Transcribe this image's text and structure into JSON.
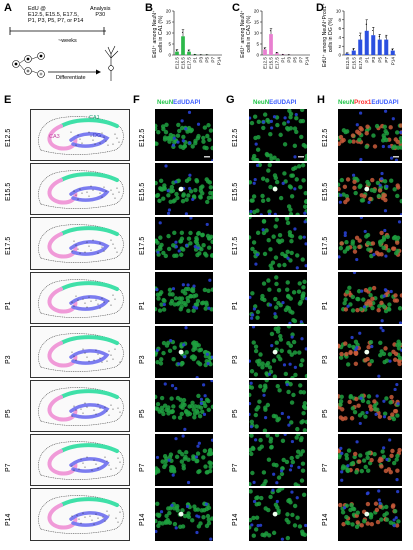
{
  "panels": {
    "A": {
      "label": "A",
      "edu_line1": "EdU @",
      "edu_line2": "E12.5, E15.5, E17.5,",
      "edu_line3": "P1, P3, P5, P7, or P14",
      "analysis_line1": "Analysis",
      "analysis_line2": "P30",
      "weeks": "~weeks",
      "differentiate": "Differentiate"
    },
    "B": {
      "label": "B",
      "ylabel_line1": "EdU⁺ among NeuN⁺",
      "ylabel_line2": "cells in CA1 (%)"
    },
    "C": {
      "label": "C",
      "ylabel_line1": "EdU⁺ among NeuN⁺",
      "ylabel_line2": "cells in CA3 (%)"
    },
    "D": {
      "label": "D",
      "ylabel_line1": "EdU⁺ among NeuN⁺Prox1⁺",
      "ylabel_line2": "cells in DG (%)"
    },
    "E": {
      "label": "E",
      "ca1": "CA1",
      "ca3": "CA3",
      "dg": "DG"
    },
    "F": {
      "label": "F",
      "h1": "NeuN",
      "h2": "EdU",
      "h3": "DAPI"
    },
    "G": {
      "label": "G",
      "h1": "NeuN",
      "h2": "EdU",
      "h3": "DAPI"
    },
    "H": {
      "label": "H",
      "h1": "NeuN",
      "h2": "Prox1",
      "h3": "EdU",
      "h4": "DAPI"
    }
  },
  "timepoints": [
    "E12.5",
    "E15.5",
    "E17.5",
    "P1",
    "P3",
    "P5",
    "P7",
    "P14"
  ],
  "colors": {
    "ca1": "#3fe0a8",
    "ca3": "#f09ad8",
    "dg": "#7b7cf0",
    "bar_green": "#2db84a",
    "bar_pink": "#e87fd0",
    "bar_blue": "#2a4fe0",
    "neun": "#22c54a",
    "dapi": "#3a5bff",
    "prox1": "#ff2a2a"
  },
  "chart_data": [
    {
      "type": "bar",
      "panel": "B",
      "categories": [
        "E12.5",
        "E15.5",
        "E17.5",
        "P1",
        "P3",
        "P5",
        "P7",
        "P14"
      ],
      "values": [
        1.5,
        8.5,
        1.5,
        0.2,
        0.1,
        0.1,
        0,
        0
      ],
      "errors": [
        1.0,
        3.0,
        0.8,
        0.1,
        0.05,
        0.05,
        0,
        0
      ],
      "ylim": [
        0,
        20
      ],
      "yticks": [
        0,
        5,
        10,
        15,
        20
      ]
    },
    {
      "type": "bar",
      "panel": "C",
      "categories": [
        "E12.5",
        "E15.5",
        "E17.5",
        "P1",
        "P3",
        "P5",
        "P7",
        "P14"
      ],
      "values": [
        2.5,
        9.5,
        0.8,
        0.2,
        0.1,
        0,
        0,
        0
      ],
      "errors": [
        0.8,
        2.5,
        0.4,
        0.1,
        0.05,
        0,
        0,
        0
      ],
      "ylim": [
        0,
        20
      ],
      "yticks": [
        0,
        5,
        10,
        15,
        20
      ]
    },
    {
      "type": "bar",
      "panel": "D",
      "categories": [
        "E12.5",
        "E15.5",
        "E17.5",
        "P1",
        "P3",
        "P5",
        "P7",
        "P14"
      ],
      "values": [
        0.3,
        1.0,
        3.5,
        5.5,
        4.5,
        3.5,
        3.5,
        1.0
      ],
      "errors": [
        0.2,
        0.5,
        1.5,
        2.5,
        1.8,
        1.2,
        1.0,
        0.4
      ],
      "ylim": [
        0,
        10
      ],
      "yticks": [
        0,
        2,
        4,
        6,
        8,
        10
      ]
    }
  ]
}
